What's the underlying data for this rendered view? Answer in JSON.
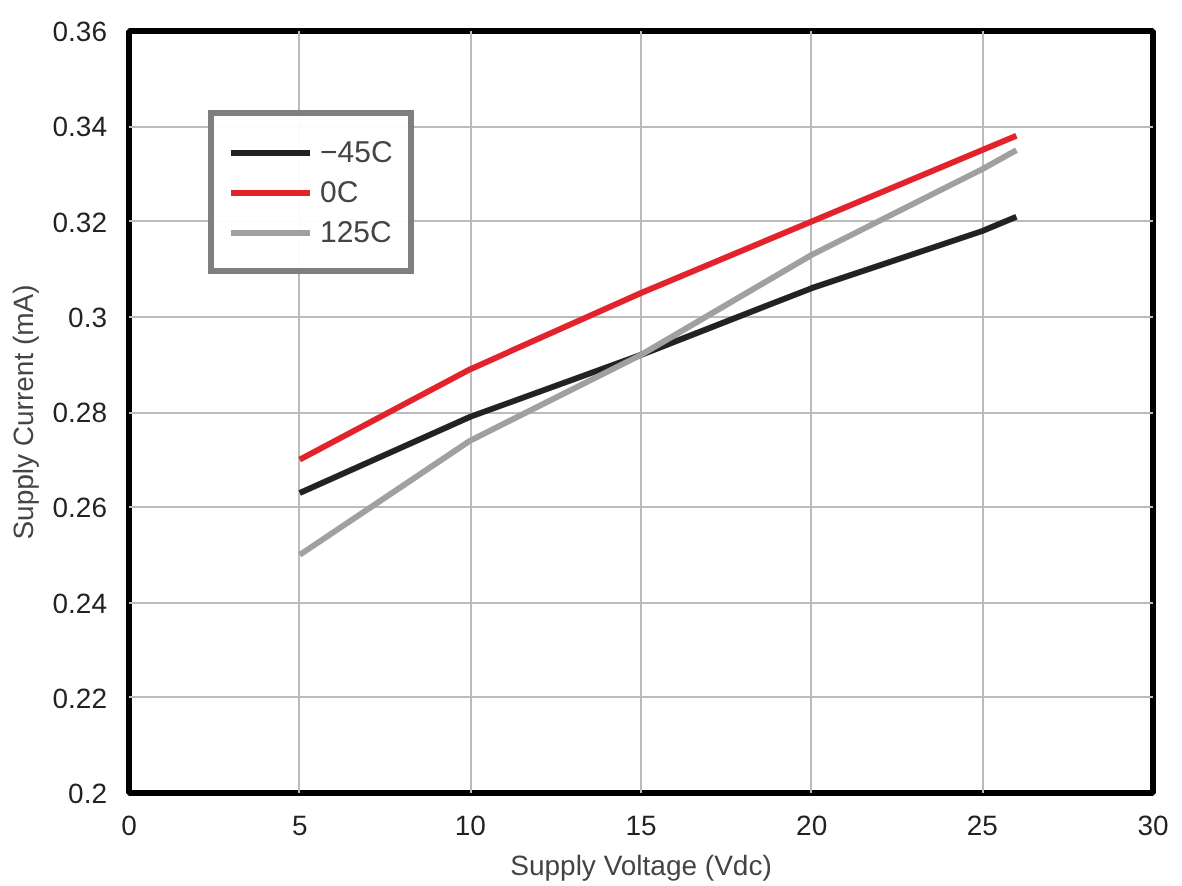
{
  "chart_data": {
    "type": "line",
    "xlabel": "Supply Voltage (Vdc)",
    "ylabel": "Supply Current (mA)",
    "x": [
      5,
      10,
      15,
      20,
      25,
      26
    ],
    "series": [
      {
        "name": "−45C",
        "color": "#222222",
        "values": [
          0.263,
          0.279,
          0.292,
          0.306,
          0.318,
          0.321
        ]
      },
      {
        "name": "0C",
        "color": "#e3232c",
        "values": [
          0.27,
          0.289,
          0.305,
          0.32,
          0.335,
          0.338
        ]
      },
      {
        "name": "125C",
        "color": "#a0a0a0",
        "values": [
          0.25,
          0.274,
          0.292,
          0.313,
          0.331,
          0.335
        ]
      }
    ],
    "xlim": [
      0,
      30
    ],
    "xticks": [
      0,
      5,
      10,
      15,
      20,
      25,
      30
    ],
    "ylim": [
      0.2,
      0.36
    ],
    "yticks": [
      {
        "value": 0.2,
        "label": "0.2"
      },
      {
        "value": 0.22,
        "label": "0.22"
      },
      {
        "value": 0.24,
        "label": "0.24"
      },
      {
        "value": 0.26,
        "label": "0.26"
      },
      {
        "value": 0.28,
        "label": "0.28"
      },
      {
        "value": 0.3,
        "label": "0.3"
      },
      {
        "value": 0.32,
        "label": "0.32"
      },
      {
        "value": 0.34,
        "label": "0.34"
      },
      {
        "value": 0.36,
        "label": "0.36"
      }
    ],
    "grid": true,
    "legend": "top left",
    "marker": "none",
    "line_style": "solid"
  }
}
